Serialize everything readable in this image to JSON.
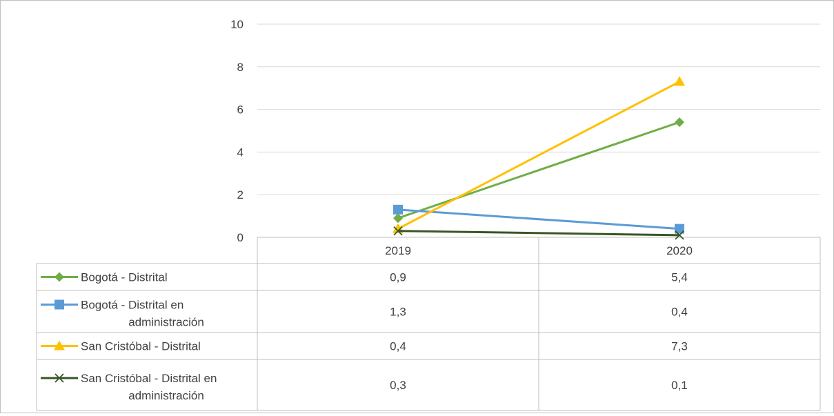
{
  "chart_data": {
    "type": "line",
    "categories": [
      "2019",
      "2020"
    ],
    "y_ticks": [
      "0",
      "2",
      "4",
      "6",
      "8",
      "10"
    ],
    "ylim": [
      0,
      10
    ],
    "grid": true,
    "legend": "data-table",
    "series": [
      {
        "name": "Bogotá - Distrital",
        "label_lines": [
          "Bogotá - Distrital"
        ],
        "values": [
          0.9,
          5.4
        ],
        "display": [
          "0,9",
          "5,4"
        ],
        "color": "#70ad47",
        "marker": "diamond"
      },
      {
        "name": "Bogotá - Distrital en administración",
        "label_lines": [
          "Bogotá - Distrital en",
          "administración"
        ],
        "values": [
          1.3,
          0.4
        ],
        "display": [
          "1,3",
          "0,4"
        ],
        "color": "#5b9bd5",
        "marker": "square"
      },
      {
        "name": "San Cristóbal - Distrital",
        "label_lines": [
          "San Cristóbal - Distrital"
        ],
        "values": [
          0.4,
          7.3
        ],
        "display": [
          "0,4",
          "7,3"
        ],
        "color": "#ffc000",
        "marker": "triangle"
      },
      {
        "name": "San Cristóbal - Distrital en administración",
        "label_lines": [
          "San Cristóbal - Distrital en",
          "administración"
        ],
        "values": [
          0.3,
          0.1
        ],
        "display": [
          "0,3",
          "0,1"
        ],
        "color": "#375623",
        "marker": "x"
      }
    ]
  }
}
